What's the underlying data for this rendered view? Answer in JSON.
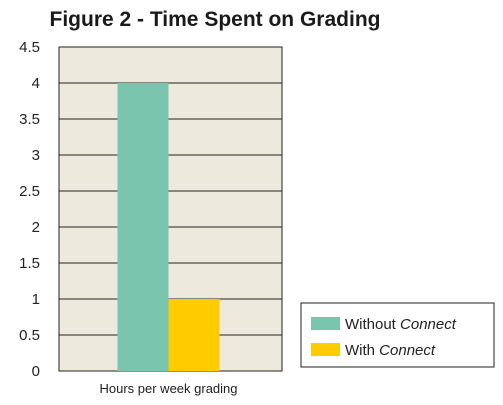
{
  "chart_data": {
    "type": "bar",
    "title": "Figure 2 - Time Spent on Grading",
    "categories": [
      "Hours per week grading"
    ],
    "xlabel": "",
    "ylabel": "",
    "ylim": [
      0,
      4.5
    ],
    "yticks": [
      "0",
      "0.5",
      "1",
      "1.5",
      "2",
      "2.5",
      "3",
      "3.5",
      "4",
      "4.5"
    ],
    "grid": true,
    "legend_position": "bottom-right",
    "plot_background": "#ede9dc",
    "series": [
      {
        "name_prefix": "Without ",
        "name_emphasis": "Connect",
        "values": [
          4
        ],
        "color": "#7ac5ad"
      },
      {
        "name_prefix": "With ",
        "name_emphasis": "Connect",
        "values": [
          1
        ],
        "color": "#ffcc00"
      }
    ]
  }
}
